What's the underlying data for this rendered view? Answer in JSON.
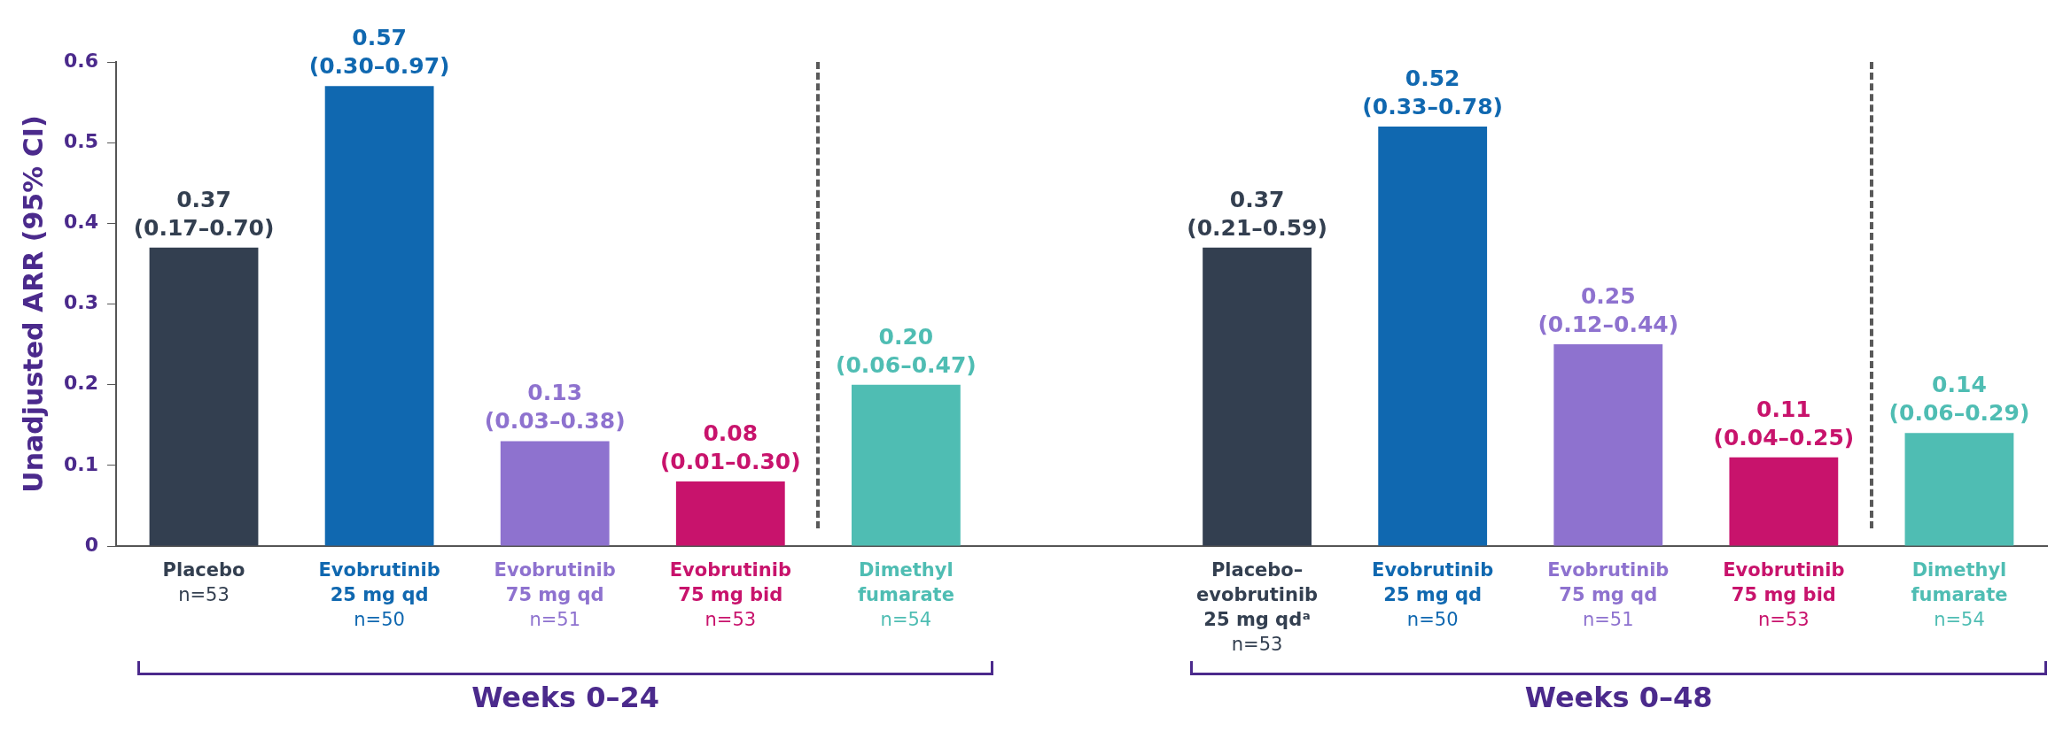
{
  "chart_data": {
    "type": "bar",
    "ylabel": "Unadjusted ARR (95% CI)",
    "categories": [
      "Placebo\nn=53",
      "Evobrutinib\n25 mg qd\nn=50",
      "Evobrutinib\n75 mg qd\nn=51",
      "Evobrutinib\n75 mg bid\nn=53",
      "Dimethyl\nfumarate\nn=54",
      null,
      "Placebo–\nevobrutinib\n25 mg qdᵃ\nn=53",
      "Evobrutinib\n25 mg qd\nn=50",
      "Evobrutinib\n75 mg qd\nn=51",
      "Evobrutinib\n75 mg bid\nn=53",
      "Dimethyl\nfumarate\nn=54"
    ],
    "values": [
      0.37,
      0.57,
      0.13,
      0.08,
      0.2,
      null,
      0.37,
      0.52,
      0.25,
      0.11,
      0.14
    ],
    "colors": [
      "#333f50",
      "#1068b0",
      "#8e72cf",
      "#c8136c",
      "#4fbdb3",
      null,
      "#333f50",
      "#1068b0",
      "#8e72cf",
      "#c8136c",
      "#4fbdb3"
    ],
    "value_labels": [
      "0.37\n(0.17–0.70)",
      "0.57\n(0.30–0.97)",
      "0.13\n(0.03–0.38)",
      "0.08\n(0.01–0.30)",
      "0.20\n(0.06–0.47)",
      null,
      "0.37\n(0.21–0.59)",
      "0.52\n(0.33–0.78)",
      "0.25\n(0.12–0.44)",
      "0.11\n(0.04–0.25)",
      "0.14\n(0.06–0.29)"
    ],
    "ylim": [
      0,
      0.6
    ],
    "yticks": [
      0,
      0.1,
      0.2,
      0.3,
      0.4,
      0.5,
      0.6
    ],
    "annotations": [
      "Weeks 0–24",
      "Weeks 0–48"
    ]
  }
}
